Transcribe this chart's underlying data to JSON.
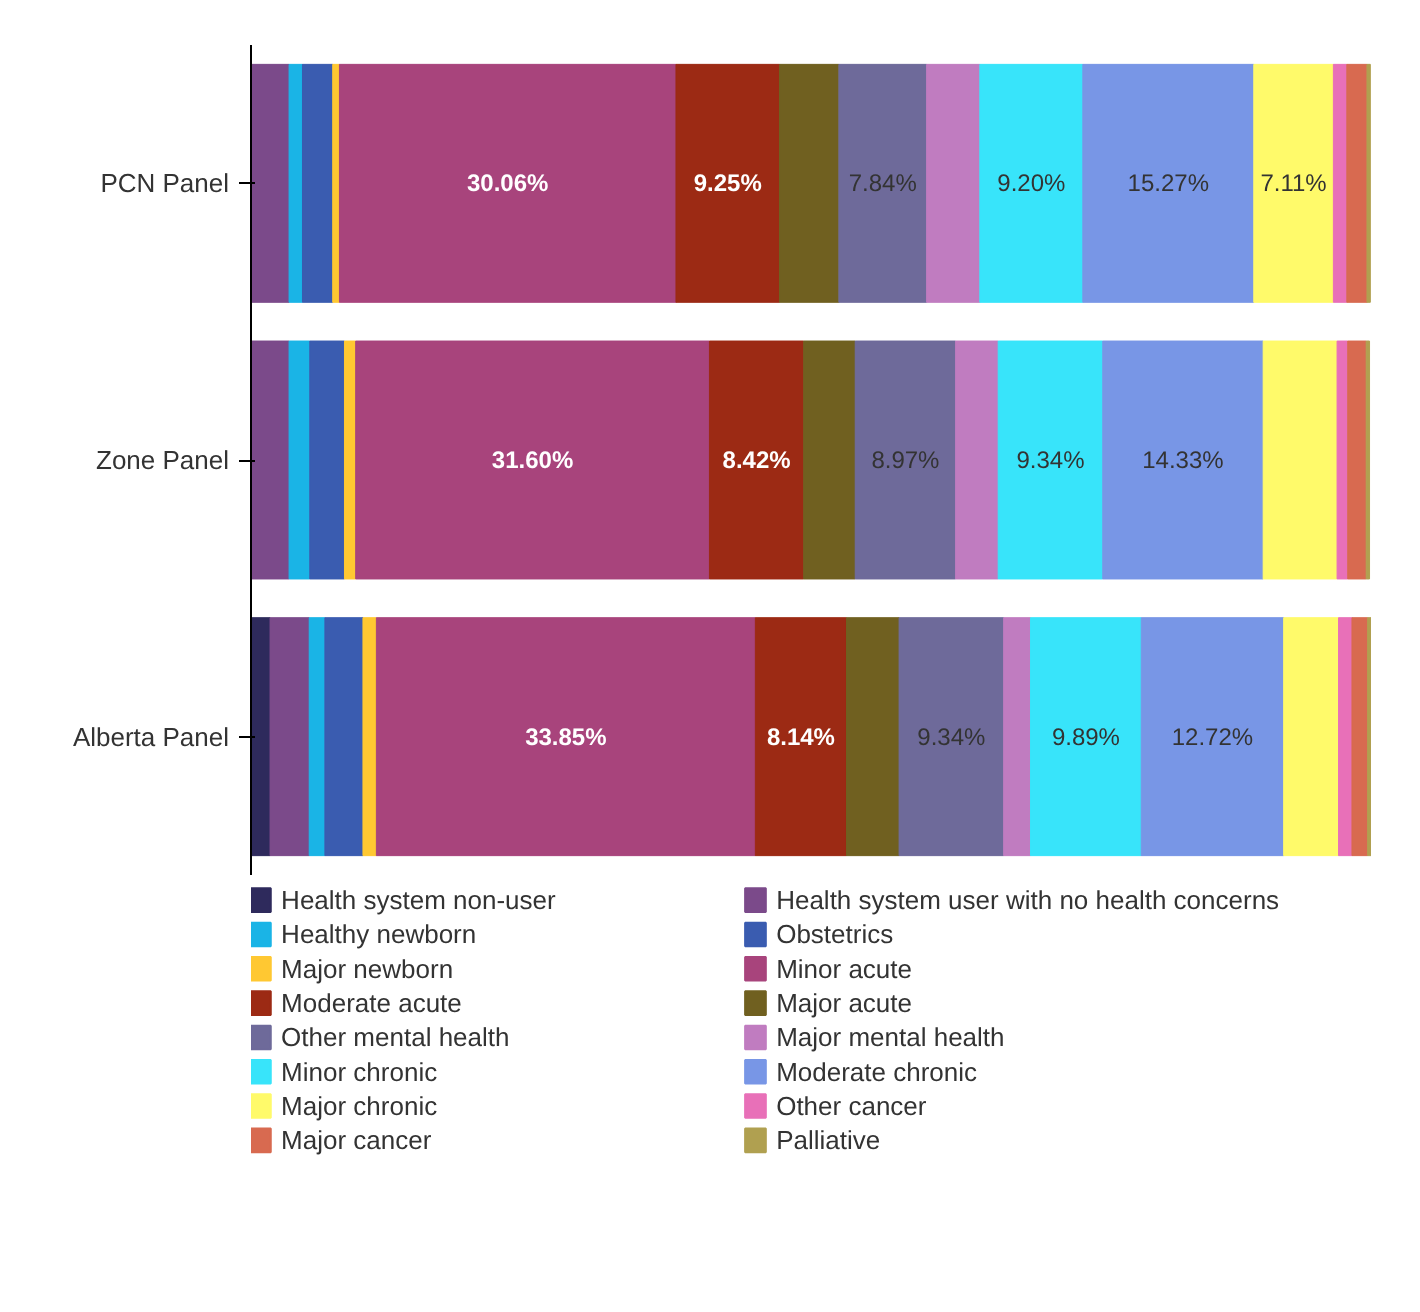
{
  "chart_data": {
    "type": "bar",
    "stacked": true,
    "orientation": "horizontal",
    "legend": "bottom",
    "grid": false,
    "categories": [
      "PCN Panel",
      "Zone Panel",
      "Alberta Panel"
    ],
    "series": [
      {
        "name": "Health system non-user",
        "color": "#2e2a5c",
        "values": [
          0,
          0,
          1.7
        ]
      },
      {
        "name": "Health system user with no health concerns",
        "color": "#7b4a8a",
        "values": [
          3.4,
          3.4,
          3.5
        ]
      },
      {
        "name": "Healthy newborn",
        "color": "#1ab4e6",
        "values": [
          1.2,
          1.85,
          1.4
        ]
      },
      {
        "name": "Obstetrics",
        "color": "#3a5cb0",
        "values": [
          2.7,
          3.1,
          3.4
        ]
      },
      {
        "name": "Major newborn",
        "color": "#ffc832",
        "values": [
          0.6,
          1.0,
          1.2
        ]
      },
      {
        "name": "Minor acute",
        "color": "#a8447c",
        "values": [
          30.06,
          31.6,
          33.85
        ],
        "value_labels": [
          "30.06%",
          "31.60%",
          "33.85%"
        ]
      },
      {
        "name": "Moderate acute",
        "color": "#9c2a14",
        "values": [
          9.25,
          8.42,
          8.14
        ],
        "value_labels": [
          "9.25%",
          "8.42%",
          "8.14%"
        ]
      },
      {
        "name": "Major acute",
        "color": "#706020",
        "values": [
          5.3,
          4.6,
          4.7
        ]
      },
      {
        "name": "Other mental health",
        "color": "#6e6a9a",
        "values": [
          7.84,
          8.97,
          9.34
        ],
        "value_labels": [
          "7.84%",
          "8.97%",
          "9.34%"
        ]
      },
      {
        "name": "Major mental health",
        "color": "#c07cc0",
        "values": [
          4.75,
          3.8,
          2.4
        ]
      },
      {
        "name": "Minor chronic",
        "color": "#38e4fa",
        "values": [
          9.2,
          9.34,
          9.89
        ],
        "value_labels": [
          "9.20%",
          "9.34%",
          "9.89%"
        ]
      },
      {
        "name": "Moderate chronic",
        "color": "#7896e6",
        "values": [
          15.27,
          14.33,
          12.72
        ],
        "value_labels": [
          "15.27%",
          "14.33%",
          "12.72%"
        ]
      },
      {
        "name": "Major chronic",
        "color": "#fffa6a",
        "values": [
          7.11,
          6.6,
          4.9
        ],
        "value_labels": [
          "7.11%",
          null,
          null
        ]
      },
      {
        "name": "Other cancer",
        "color": "#e870b8",
        "values": [
          1.2,
          0.95,
          1.2
        ]
      },
      {
        "name": "Major cancer",
        "color": "#d86a50",
        "values": [
          1.8,
          1.65,
          1.4
        ]
      },
      {
        "name": "Palliative",
        "color": "#b0a050",
        "values": [
          0.3,
          0.3,
          0.3
        ]
      }
    ]
  }
}
